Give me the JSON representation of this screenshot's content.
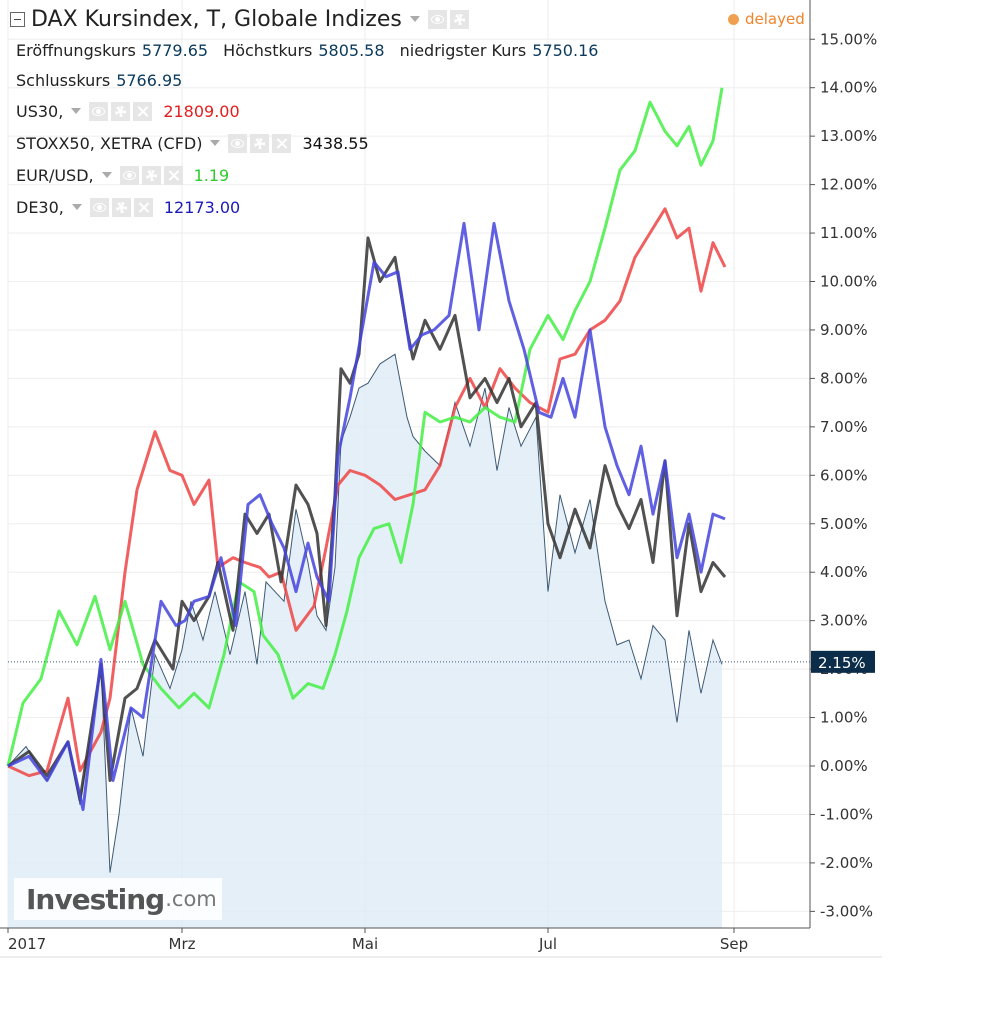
{
  "header": {
    "title": "DAX Kursindex, T, Globale Indizes",
    "delayed_label": "delayed",
    "ohlc": [
      {
        "label": "Eröffnungskurs",
        "value": "5779.65"
      },
      {
        "label": "Höchstkurs",
        "value": "5805.58"
      },
      {
        "label": "niedrigster Kurs",
        "value": "5750.16"
      }
    ],
    "close": {
      "label": "Schlusskurs",
      "value": "5766.95"
    }
  },
  "legend_series": [
    {
      "name": "US30,",
      "value": "21809.00",
      "color": "#e31e1e",
      "controls": [
        "eye-icon",
        "gear-icon",
        "close-icon"
      ]
    },
    {
      "name": "STOXX50, XETRA (CFD)",
      "value": "3438.55",
      "color": "#111111",
      "controls": [
        "eye-icon",
        "gear-icon",
        "close-icon"
      ]
    },
    {
      "name": "EUR/USD,",
      "value": "1.19",
      "color": "#2ecc2e",
      "controls": [
        "eye-icon",
        "gear-icon",
        "close-icon"
      ]
    },
    {
      "name": "DE30,",
      "value": "12173.00",
      "color": "#1a1ab8",
      "controls": [
        "eye-icon",
        "gear-icon",
        "close-icon"
      ]
    }
  ],
  "watermark": {
    "main": "Investing",
    "sub": ".com"
  },
  "colors": {
    "main_area_fill": "#dce9f6",
    "main_line": "#3d5a75",
    "us30": "#ee4444",
    "stoxx50": "#333333",
    "eurusd": "#44ee44",
    "de30": "#4444dd",
    "last_value_badge": "#0b2d4a"
  },
  "chart_data": {
    "type": "line",
    "ylabel_unit": "%",
    "ylim": [
      -3.3,
      15.5
    ],
    "y_ticks": [
      "15.00%",
      "14.00%",
      "13.00%",
      "12.00%",
      "11.00%",
      "10.00%",
      "9.00%",
      "8.00%",
      "7.00%",
      "6.00%",
      "5.00%",
      "4.00%",
      "3.00%",
      "2.00%",
      "1.00%",
      "0.00%",
      "-1.00%",
      "-2.00%",
      "-3.00%"
    ],
    "y_tick_values": [
      15,
      14,
      13,
      12,
      11,
      10,
      9,
      8,
      7,
      6,
      5,
      4,
      3,
      2,
      1,
      0,
      -1,
      -2,
      -3
    ],
    "x_ticks": [
      "2017",
      "Mrz",
      "Mai",
      "Jul",
      "Sep"
    ],
    "x_tick_values": [
      1,
      59,
      120,
      181,
      243
    ],
    "last_value_label": "2.15%",
    "last_value": 2.15,
    "grid": true,
    "legend": "top-left",
    "series": [
      {
        "name": "DAX Kursindex",
        "role": "main-area",
        "points": [
          [
            1,
            0
          ],
          [
            7,
            0.4
          ],
          [
            14,
            -0.3
          ],
          [
            21,
            0.5
          ],
          [
            25,
            -0.8
          ],
          [
            32,
            2.1
          ],
          [
            35,
            -2.2
          ],
          [
            38,
            -1
          ],
          [
            42,
            1.2
          ],
          [
            46,
            0.2
          ],
          [
            50,
            2.3
          ],
          [
            55,
            1.6
          ],
          [
            59,
            2.4
          ],
          [
            62,
            3.4
          ],
          [
            66,
            2.6
          ],
          [
            70,
            3.6
          ],
          [
            75,
            2.3
          ],
          [
            80,
            3.6
          ],
          [
            84,
            2.1
          ],
          [
            87,
            3.8
          ],
          [
            93,
            3.4
          ],
          [
            97,
            5.3
          ],
          [
            101,
            4.2
          ],
          [
            104,
            3.1
          ],
          [
            107,
            2.8
          ],
          [
            110,
            4.1
          ],
          [
            112,
            6.7
          ],
          [
            115,
            7.2
          ],
          [
            118,
            7.8
          ],
          [
            121,
            7.9
          ],
          [
            125,
            8.3
          ],
          [
            130,
            8.5
          ],
          [
            134,
            7.2
          ],
          [
            136,
            6.8
          ],
          [
            140,
            6.5
          ],
          [
            145,
            6.2
          ],
          [
            150,
            7.5
          ],
          [
            155,
            6.6
          ],
          [
            160,
            7.8
          ],
          [
            164,
            6.1
          ],
          [
            168,
            7.4
          ],
          [
            172,
            6.6
          ],
          [
            177,
            7.2
          ],
          [
            181,
            3.6
          ],
          [
            185,
            5.6
          ],
          [
            190,
            4.4
          ],
          [
            195,
            5.5
          ],
          [
            200,
            3.4
          ],
          [
            204,
            2.5
          ],
          [
            208,
            2.6
          ],
          [
            212,
            1.8
          ],
          [
            216,
            2.9
          ],
          [
            220,
            2.6
          ],
          [
            224,
            0.9
          ],
          [
            228,
            2.8
          ],
          [
            232,
            1.5
          ],
          [
            236,
            2.6
          ],
          [
            239,
            2.1
          ]
        ]
      },
      {
        "name": "US30,",
        "points": [
          [
            1,
            0
          ],
          [
            8,
            -0.2
          ],
          [
            14,
            -0.1
          ],
          [
            21,
            1.4
          ],
          [
            25,
            -0.1
          ],
          [
            32,
            0.7
          ],
          [
            35,
            1.4
          ],
          [
            40,
            4
          ],
          [
            44,
            5.7
          ],
          [
            50,
            6.9
          ],
          [
            55,
            6.1
          ],
          [
            59,
            6.0
          ],
          [
            63,
            5.4
          ],
          [
            68,
            5.9
          ],
          [
            71,
            4.1
          ],
          [
            76,
            4.3
          ],
          [
            80,
            4.2
          ],
          [
            85,
            4.1
          ],
          [
            88,
            3.9
          ],
          [
            92,
            4.0
          ],
          [
            97,
            2.8
          ],
          [
            103,
            3.3
          ],
          [
            107,
            4.5
          ],
          [
            111,
            5.8
          ],
          [
            115,
            6.1
          ],
          [
            120,
            6.0
          ],
          [
            125,
            5.8
          ],
          [
            130,
            5.5
          ],
          [
            135,
            5.6
          ],
          [
            140,
            5.7
          ],
          [
            145,
            6.2
          ],
          [
            150,
            7.4
          ],
          [
            155,
            8.0
          ],
          [
            160,
            7.4
          ],
          [
            165,
            8.2
          ],
          [
            170,
            7.8
          ],
          [
            175,
            7.5
          ],
          [
            181,
            7.3
          ],
          [
            185,
            8.4
          ],
          [
            190,
            8.5
          ],
          [
            195,
            9.0
          ],
          [
            200,
            9.2
          ],
          [
            205,
            9.6
          ],
          [
            210,
            10.5
          ],
          [
            215,
            11.0
          ],
          [
            220,
            11.5
          ],
          [
            224,
            10.9
          ],
          [
            228,
            11.1
          ],
          [
            232,
            9.8
          ],
          [
            236,
            10.8
          ],
          [
            240,
            10.3
          ]
        ]
      },
      {
        "name": "STOXX50, XETRA (CFD)",
        "points": [
          [
            1,
            0
          ],
          [
            8,
            0.3
          ],
          [
            14,
            -0.2
          ],
          [
            21,
            0.5
          ],
          [
            25,
            -0.7
          ],
          [
            32,
            2.1
          ],
          [
            35,
            -0.3
          ],
          [
            40,
            1.4
          ],
          [
            44,
            1.6
          ],
          [
            50,
            2.6
          ],
          [
            56,
            2.0
          ],
          [
            59,
            3.4
          ],
          [
            63,
            3.0
          ],
          [
            68,
            3.5
          ],
          [
            71,
            4.2
          ],
          [
            76,
            2.8
          ],
          [
            80,
            5.2
          ],
          [
            84,
            4.8
          ],
          [
            88,
            5.2
          ],
          [
            92,
            3.8
          ],
          [
            97,
            5.8
          ],
          [
            101,
            5.4
          ],
          [
            104,
            4.8
          ],
          [
            107,
            2.9
          ],
          [
            110,
            5.6
          ],
          [
            112,
            8.2
          ],
          [
            115,
            7.9
          ],
          [
            118,
            8.5
          ],
          [
            121,
            10.9
          ],
          [
            125,
            10.0
          ],
          [
            130,
            10.5
          ],
          [
            134,
            9.0
          ],
          [
            136,
            8.4
          ],
          [
            140,
            9.2
          ],
          [
            145,
            8.6
          ],
          [
            150,
            9.3
          ],
          [
            155,
            7.6
          ],
          [
            160,
            8.0
          ],
          [
            164,
            7.5
          ],
          [
            168,
            8.0
          ],
          [
            172,
            7.0
          ],
          [
            177,
            7.5
          ],
          [
            181,
            5.0
          ],
          [
            185,
            4.3
          ],
          [
            190,
            5.3
          ],
          [
            195,
            4.5
          ],
          [
            200,
            6.2
          ],
          [
            204,
            5.4
          ],
          [
            208,
            4.9
          ],
          [
            212,
            5.5
          ],
          [
            216,
            4.2
          ],
          [
            220,
            6.3
          ],
          [
            224,
            3.1
          ],
          [
            228,
            5.0
          ],
          [
            232,
            3.6
          ],
          [
            236,
            4.2
          ],
          [
            240,
            3.9
          ]
        ]
      },
      {
        "name": "EUR/USD,",
        "points": [
          [
            1,
            0
          ],
          [
            6,
            1.3
          ],
          [
            12,
            1.8
          ],
          [
            18,
            3.2
          ],
          [
            24,
            2.5
          ],
          [
            30,
            3.5
          ],
          [
            35,
            2.4
          ],
          [
            40,
            3.4
          ],
          [
            46,
            2.1
          ],
          [
            52,
            1.6
          ],
          [
            58,
            1.2
          ],
          [
            63,
            1.5
          ],
          [
            68,
            1.2
          ],
          [
            73,
            2.3
          ],
          [
            78,
            3.8
          ],
          [
            83,
            3.6
          ],
          [
            86,
            2.7
          ],
          [
            91,
            2.3
          ],
          [
            96,
            1.4
          ],
          [
            101,
            1.7
          ],
          [
            106,
            1.6
          ],
          [
            110,
            2.3
          ],
          [
            114,
            3.2
          ],
          [
            118,
            4.3
          ],
          [
            123,
            4.9
          ],
          [
            128,
            5.0
          ],
          [
            132,
            4.2
          ],
          [
            136,
            5.4
          ],
          [
            140,
            7.3
          ],
          [
            145,
            7.1
          ],
          [
            150,
            7.2
          ],
          [
            155,
            7.1
          ],
          [
            160,
            7.4
          ],
          [
            165,
            7.2
          ],
          [
            170,
            7.1
          ],
          [
            175,
            8.6
          ],
          [
            181,
            9.3
          ],
          [
            186,
            8.8
          ],
          [
            190,
            9.4
          ],
          [
            195,
            10.0
          ],
          [
            200,
            11.1
          ],
          [
            205,
            12.3
          ],
          [
            210,
            12.7
          ],
          [
            215,
            13.7
          ],
          [
            220,
            13.1
          ],
          [
            224,
            12.8
          ],
          [
            228,
            13.2
          ],
          [
            232,
            12.4
          ],
          [
            236,
            12.9
          ],
          [
            239,
            14.0
          ]
        ]
      },
      {
        "name": "DE30,",
        "points": [
          [
            1,
            0
          ],
          [
            8,
            0.2
          ],
          [
            14,
            -0.3
          ],
          [
            21,
            0.5
          ],
          [
            26,
            -0.9
          ],
          [
            32,
            2.2
          ],
          [
            36,
            -0.3
          ],
          [
            42,
            1.2
          ],
          [
            46,
            1.0
          ],
          [
            52,
            3.4
          ],
          [
            57,
            2.9
          ],
          [
            60,
            3.0
          ],
          [
            63,
            3.4
          ],
          [
            68,
            3.5
          ],
          [
            72,
            4.3
          ],
          [
            77,
            2.9
          ],
          [
            81,
            5.4
          ],
          [
            85,
            5.6
          ],
          [
            89,
            5.0
          ],
          [
            93,
            4.5
          ],
          [
            97,
            3.6
          ],
          [
            101,
            4.6
          ],
          [
            104,
            3.9
          ],
          [
            108,
            3.4
          ],
          [
            111,
            6.4
          ],
          [
            115,
            7.6
          ],
          [
            119,
            9.0
          ],
          [
            123,
            10.4
          ],
          [
            127,
            10.1
          ],
          [
            131,
            10.2
          ],
          [
            135,
            8.6
          ],
          [
            139,
            8.9
          ],
          [
            143,
            9.0
          ],
          [
            148,
            9.3
          ],
          [
            153,
            11.2
          ],
          [
            158,
            9.0
          ],
          [
            163,
            11.2
          ],
          [
            168,
            9.6
          ],
          [
            173,
            8.6
          ],
          [
            178,
            7.3
          ],
          [
            182,
            7.2
          ],
          [
            186,
            8.0
          ],
          [
            190,
            7.2
          ],
          [
            195,
            9.0
          ],
          [
            200,
            7.0
          ],
          [
            204,
            6.2
          ],
          [
            208,
            5.6
          ],
          [
            212,
            6.6
          ],
          [
            216,
            5.2
          ],
          [
            220,
            6.3
          ],
          [
            224,
            4.3
          ],
          [
            228,
            5.2
          ],
          [
            232,
            4.0
          ],
          [
            236,
            5.2
          ],
          [
            240,
            5.1
          ]
        ]
      }
    ]
  }
}
